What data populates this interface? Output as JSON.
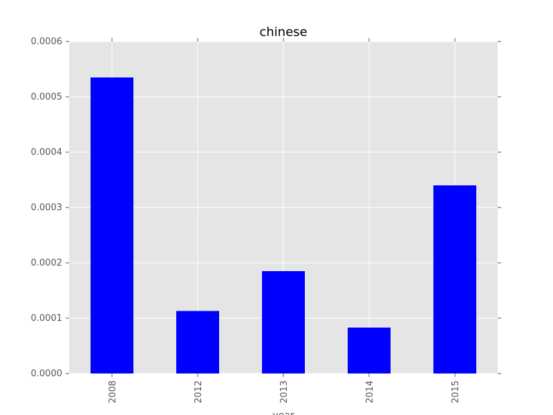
{
  "chart_data": {
    "type": "bar",
    "title": "chinese",
    "xlabel": "year",
    "ylabel": "",
    "categories": [
      "2008",
      "2012",
      "2013",
      "2014",
      "2015"
    ],
    "values": [
      0.000535,
      0.000113,
      0.000185,
      8.3e-05,
      0.00034
    ],
    "ylim": [
      0,
      0.0006
    ],
    "yticks": [
      "0.0000",
      "0.0001",
      "0.0002",
      "0.0003",
      "0.0004",
      "0.0005",
      "0.0006"
    ],
    "ytick_values": [
      0,
      0.0001,
      0.0002,
      0.0003,
      0.0004,
      0.0005,
      0.0006
    ],
    "grid": true,
    "legend": "none",
    "colors": {
      "bar": "#0000ff",
      "plot_background": "#e5e5e5",
      "grid": "#ffffff",
      "text": "#555555"
    }
  }
}
